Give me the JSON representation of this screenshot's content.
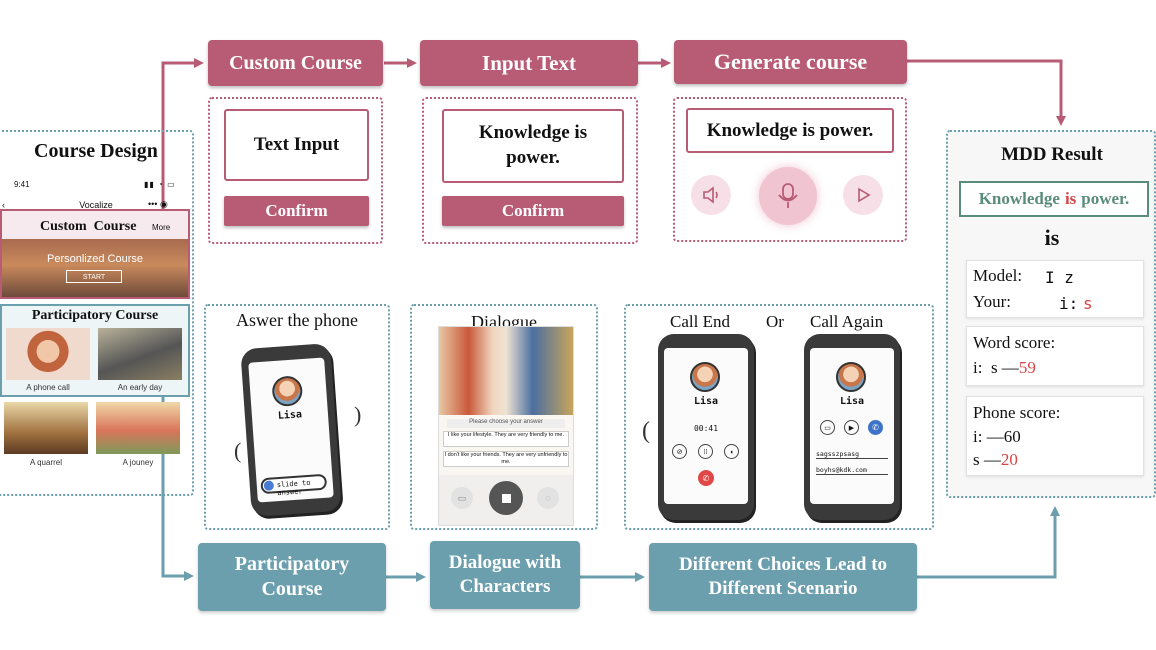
{
  "top_flow": {
    "custom_course": "Custom Course",
    "input_text": "Input Text",
    "generate_course": "Generate course"
  },
  "input_panel": {
    "textbox": "Text Input",
    "confirm": "Confirm"
  },
  "text_panel": {
    "textbox": "Knowledge is power.",
    "confirm": "Confirm"
  },
  "generate_panel": {
    "textbox": "Knowledge is power."
  },
  "course_design": {
    "title": "Course Design",
    "status_time": "9:41",
    "app_name": "Vocalize",
    "custom_header": "Custom  Course",
    "more": "More",
    "personalized": "Personlized Course",
    "start": "START",
    "participatory_header": "Participatory Course",
    "tiles": [
      "A phone call",
      "An early day",
      "A quarrel",
      "A jouney"
    ]
  },
  "mdd": {
    "title": "MDD Result",
    "sentence_parts": [
      "Knowledge",
      "is",
      "power."
    ],
    "word": "is",
    "model_label": "Model:",
    "model_value": "I z",
    "your_label": "Your:",
    "your_prefix": "i:",
    "your_value": "s",
    "word_score_label": "Word score:",
    "word_score_prefix": "i:  s —",
    "word_score_value": "59",
    "phone_score_label": "Phone score:",
    "phone_i": "i: —60",
    "phone_s_prefix": "s —",
    "phone_s_value": "20"
  },
  "answer_panel": {
    "title": "Aswer the phone",
    "name": "Lisa",
    "slide": "slide to answer"
  },
  "dialogue_panel": {
    "title": "Dialogue",
    "prompt": "Please choose your answer",
    "option1": "I like your lifestyle. They are very friendly to me.",
    "option2": "I don't like your friends. They are very unfriendly to me."
  },
  "call_panel": {
    "call_end": "Call End",
    "or": "Or",
    "call_again": "Call Again",
    "name": "Lisa",
    "timer": "00:41",
    "email1": "sagsszpsasg",
    "email2": "boyhs@kdk.com"
  },
  "bottom_flow": {
    "participatory": "Participatory Course",
    "dialogue": "Dialogue with Characters",
    "choices": "Different Choices Lead to Different Scenario"
  },
  "colors": {
    "pink": "#b85b75",
    "teal": "#6b9fad",
    "green": "#5a8c7a",
    "red": "#d64545"
  }
}
